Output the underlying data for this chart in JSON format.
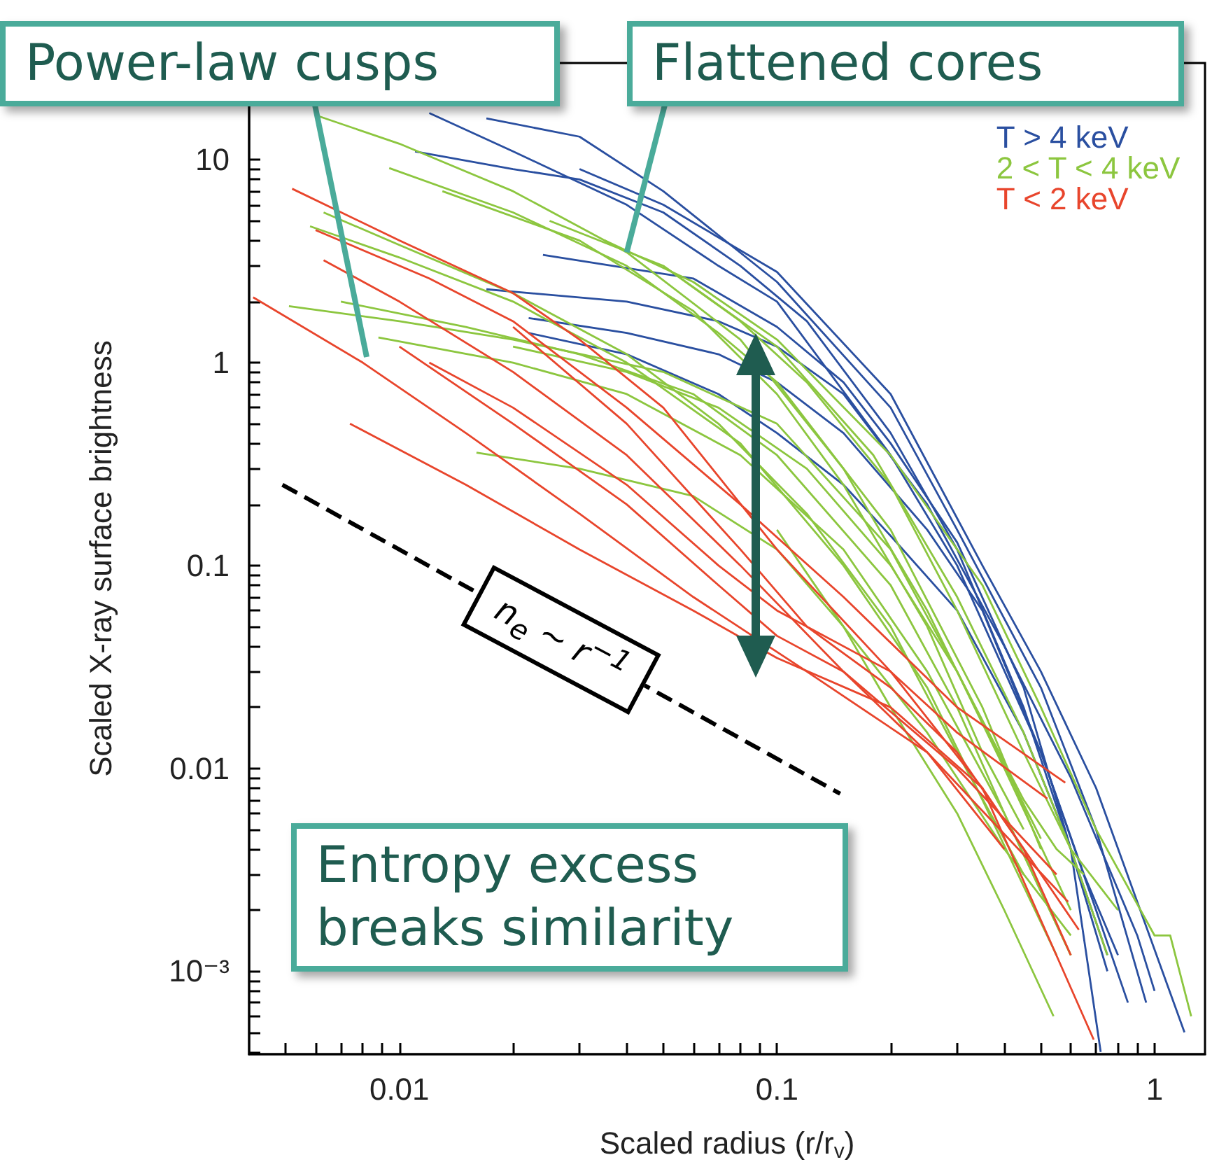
{
  "chart_data": {
    "type": "line",
    "xlabel": "Scaled radius (r/r$_{v}$)",
    "ylabel": "Scaled X-ray surface brightness",
    "log": "xy",
    "grid": false,
    "marker": "none",
    "line_style": "solid",
    "legend": "top right",
    "xlim": [
      0.004,
      1.36
    ],
    "ylim": [
      0.00039,
      30
    ],
    "xticks": [
      {
        "value": 0.005,
        "label": null
      },
      {
        "value": 0.006,
        "label": null
      },
      {
        "value": 0.007,
        "label": null
      },
      {
        "value": 0.008,
        "label": null
      },
      {
        "value": 0.009,
        "label": null
      },
      0.01,
      {
        "value": 0.02,
        "label": null
      },
      {
        "value": 0.03,
        "label": null
      },
      {
        "value": 0.04,
        "label": null
      },
      {
        "value": 0.05,
        "label": null
      },
      {
        "value": 0.06,
        "label": null
      },
      {
        "value": 0.07,
        "label": null
      },
      {
        "value": 0.08,
        "label": null
      },
      {
        "value": 0.09,
        "label": null
      },
      0.1,
      {
        "value": 0.2,
        "label": null
      },
      {
        "value": 0.3,
        "label": null
      },
      {
        "value": 0.4,
        "label": null
      },
      {
        "value": 0.5,
        "label": null
      },
      {
        "value": 0.6,
        "label": null
      },
      {
        "value": 0.7,
        "label": null
      },
      {
        "value": 0.8,
        "label": null
      },
      {
        "value": 0.9,
        "label": null
      },
      1
    ],
    "yticks": [
      {
        "value": 0.0004,
        "label": null
      },
      {
        "value": 0.0005,
        "label": null
      },
      {
        "value": 0.0006,
        "label": null
      },
      {
        "value": 0.0007,
        "label": null
      },
      {
        "value": 0.0008,
        "label": null
      },
      {
        "value": 0.0009,
        "label": null
      },
      {
        "value": 0.001,
        "label": "10⁻³"
      },
      {
        "value": 0.002,
        "label": null
      },
      {
        "value": 0.003,
        "label": null
      },
      {
        "value": 0.004,
        "label": null
      },
      {
        "value": 0.005,
        "label": null
      },
      {
        "value": 0.006,
        "label": null
      },
      {
        "value": 0.007,
        "label": null
      },
      {
        "value": 0.008,
        "label": null
      },
      {
        "value": 0.009,
        "label": null
      },
      0.01,
      {
        "value": 0.02,
        "label": null
      },
      {
        "value": 0.03,
        "label": null
      },
      {
        "value": 0.04,
        "label": null
      },
      {
        "value": 0.05,
        "label": null
      },
      {
        "value": 0.06,
        "label": null
      },
      {
        "value": 0.07,
        "label": null
      },
      {
        "value": 0.08,
        "label": null
      },
      {
        "value": 0.09,
        "label": null
      },
      0.1,
      {
        "value": 0.2,
        "label": null
      },
      {
        "value": 0.3,
        "label": null
      },
      {
        "value": 0.4,
        "label": null
      },
      {
        "value": 0.5,
        "label": null
      },
      {
        "value": 0.6,
        "label": null
      },
      {
        "value": 0.7,
        "label": null
      },
      {
        "value": 0.8,
        "label": null
      },
      {
        "value": 0.9,
        "label": null
      },
      1,
      {
        "value": 2,
        "label": null
      },
      {
        "value": 3,
        "label": null
      },
      {
        "value": 4,
        "label": null
      },
      {
        "value": 5,
        "label": null
      },
      {
        "value": 6,
        "label": null
      },
      {
        "value": 7,
        "label": null
      },
      {
        "value": 8,
        "label": null
      },
      {
        "value": 9,
        "label": null
      },
      10,
      {
        "value": 20,
        "label": null
      }
    ],
    "series": [
      {
        "name": "T > 4 keV",
        "color": "#2a4fa0",
        "x": [
          0.012,
          0.02,
          0.04,
          0.07,
          0.1,
          0.2,
          0.3,
          0.5,
          0.7,
          0.85
        ],
        "values": [
          17,
          11,
          6,
          3,
          2,
          0.35,
          0.1,
          0.012,
          0.002,
          0.0007
        ]
      },
      {
        "color": "#2a4fa0",
        "x": [
          0.011,
          0.02,
          0.03,
          0.05,
          0.08,
          0.12,
          0.2,
          0.3,
          0.45,
          0.6,
          0.75
        ],
        "values": [
          11,
          9,
          8,
          5.5,
          3,
          1.6,
          0.45,
          0.12,
          0.02,
          0.004,
          0.001
        ]
      },
      {
        "color": "#2a4fa0",
        "x": [
          0.017,
          0.04,
          0.07,
          0.1,
          0.15,
          0.25,
          0.4,
          0.6,
          0.9,
          1.0
        ],
        "values": [
          2.3,
          2.0,
          1.6,
          1.2,
          0.7,
          0.2,
          0.04,
          0.009,
          0.0015,
          0.0008
        ]
      },
      {
        "color": "#2a4fa0",
        "x": [
          0.024,
          0.06,
          0.1,
          0.15,
          0.2,
          0.3,
          0.45,
          0.6,
          0.72
        ],
        "values": [
          3.4,
          2.6,
          1.5,
          0.8,
          0.4,
          0.13,
          0.025,
          0.004,
          0.0004
        ]
      },
      {
        "color": "#2a4fa0",
        "x": [
          0.022,
          0.04,
          0.07,
          0.1,
          0.15,
          0.25,
          0.35,
          0.5,
          0.65,
          0.8
        ],
        "values": [
          1.66,
          1.4,
          1.1,
          0.8,
          0.45,
          0.15,
          0.06,
          0.012,
          0.003,
          0.0012
        ]
      },
      {
        "color": "#2a4fa0",
        "x": [
          0.022,
          0.04,
          0.07,
          0.1,
          0.15,
          0.2,
          0.3,
          0.45,
          0.6,
          0.75
        ],
        "values": [
          1.4,
          1.1,
          0.7,
          0.45,
          0.25,
          0.14,
          0.06,
          0.015,
          0.004,
          0.0012
        ]
      },
      {
        "color": "#2a4fa0",
        "x": [
          0.017,
          0.03,
          0.05,
          0.1,
          0.2,
          0.3,
          0.5,
          0.7,
          0.95
        ],
        "values": [
          16,
          13,
          7,
          2.5,
          0.6,
          0.15,
          0.025,
          0.005,
          0.0007
        ]
      },
      {
        "color": "#2a4fa0",
        "x": [
          0.03,
          0.05,
          0.1,
          0.2,
          0.35,
          0.5,
          0.7,
          1.2
        ],
        "values": [
          9,
          6,
          2.8,
          0.7,
          0.1,
          0.03,
          0.008,
          0.0005
        ]
      },
      {
        "name": "2 < T < 4 keV",
        "color": "#8cc63f",
        "x": [
          0.006,
          0.01,
          0.02,
          0.04,
          0.08,
          0.15,
          0.25,
          0.4,
          0.6
        ],
        "values": [
          16.6,
          12,
          7,
          3.5,
          1.3,
          0.3,
          0.06,
          0.01,
          0.002
        ]
      },
      {
        "color": "#8cc63f",
        "x": [
          0.0094,
          0.02,
          0.04,
          0.07,
          0.1,
          0.2,
          0.35,
          0.5
        ],
        "values": [
          9.1,
          5.5,
          3,
          1.4,
          0.8,
          0.15,
          0.02,
          0.004
        ]
      },
      {
        "color": "#8cc63f",
        "x": [
          0.0063,
          0.01,
          0.02,
          0.04,
          0.07,
          0.12,
          0.2,
          0.3,
          0.45
        ],
        "values": [
          5.5,
          3.8,
          2.2,
          1.1,
          0.5,
          0.18,
          0.05,
          0.012,
          0.003
        ]
      },
      {
        "color": "#8cc63f",
        "x": [
          0.0058,
          0.01,
          0.02,
          0.04,
          0.08,
          0.15,
          0.25,
          0.35,
          0.55
        ],
        "values": [
          4.7,
          3.3,
          2.0,
          1.0,
          0.4,
          0.1,
          0.025,
          0.007,
          0.0012
        ]
      },
      {
        "color": "#8cc63f",
        "x": [
          0.0051,
          0.01,
          0.02,
          0.05,
          0.1,
          0.2,
          0.3,
          0.5
        ],
        "values": [
          1.9,
          1.6,
          1.3,
          0.9,
          0.5,
          0.12,
          0.03,
          0.0045
        ]
      },
      {
        "color": "#8cc63f",
        "x": [
          0.007,
          0.015,
          0.03,
          0.06,
          0.1,
          0.2,
          0.3,
          0.4,
          0.6
        ],
        "values": [
          2.0,
          1.5,
          1.1,
          0.7,
          0.35,
          0.08,
          0.02,
          0.006,
          0.0012
        ]
      },
      {
        "color": "#8cc63f",
        "x": [
          0.0088,
          0.02,
          0.04,
          0.08,
          0.15,
          0.25,
          0.4,
          0.6
        ],
        "values": [
          1.33,
          1.0,
          0.7,
          0.35,
          0.12,
          0.03,
          0.006,
          0.0012
        ]
      },
      {
        "color": "#8cc63f",
        "x": [
          0.016,
          0.03,
          0.06,
          0.1,
          0.15,
          0.25,
          0.4,
          0.6
        ],
        "values": [
          0.36,
          0.3,
          0.22,
          0.12,
          0.05,
          0.015,
          0.004,
          0.0015
        ]
      },
      {
        "color": "#8cc63f",
        "x": [
          0.035,
          0.06,
          0.1,
          0.2,
          0.35,
          0.5,
          0.7,
          1.0,
          1.1,
          1.25
        ],
        "values": [
          4,
          2.5,
          1.3,
          0.35,
          0.08,
          0.02,
          0.005,
          0.0015,
          0.0015,
          0.0006
        ]
      },
      {
        "color": "#8cc63f",
        "x": [
          0.05,
          0.08,
          0.12,
          0.2,
          0.3,
          0.45,
          0.6,
          0.8
        ],
        "values": [
          3,
          1.6,
          0.8,
          0.25,
          0.06,
          0.012,
          0.004,
          0.002
        ]
      },
      {
        "color": "#8cc63f",
        "x": [
          0.02,
          0.04,
          0.07,
          0.12,
          0.2,
          0.3,
          0.45,
          0.55,
          0.65
        ],
        "values": [
          1.2,
          0.9,
          0.6,
          0.3,
          0.1,
          0.03,
          0.007,
          0.004,
          0.003
        ]
      },
      {
        "color": "#8cc63f",
        "x": [
          0.013,
          0.03,
          0.06,
          0.1,
          0.15,
          0.25,
          0.35,
          0.45
        ],
        "values": [
          7,
          4,
          1.8,
          0.7,
          0.25,
          0.05,
          0.012,
          0.005
        ]
      },
      {
        "color": "#8cc63f",
        "x": [
          0.025,
          0.05,
          0.1,
          0.18,
          0.3,
          0.45,
          0.6,
          0.75
        ],
        "values": [
          5,
          3,
          1.2,
          0.35,
          0.07,
          0.015,
          0.004,
          0.0012
        ]
      },
      {
        "color": "#8cc63f",
        "x": [
          0.1,
          0.15,
          0.2,
          0.3,
          0.4,
          0.54
        ],
        "values": [
          0.15,
          0.05,
          0.02,
          0.006,
          0.002,
          0.0006
        ]
      },
      {
        "name": "T < 2 keV",
        "color": "#e8452c",
        "x": [
          0.0052,
          0.01,
          0.02,
          0.03,
          0.05,
          0.1,
          0.2,
          0.35,
          0.69
        ],
        "values": [
          7.2,
          4,
          2.2,
          1.3,
          0.6,
          0.12,
          0.03,
          0.008,
          0.00046
        ]
      },
      {
        "color": "#e8452c",
        "x": [
          0.0063,
          0.01,
          0.02,
          0.04,
          0.08,
          0.15,
          0.3,
          0.55
        ],
        "values": [
          3.2,
          2,
          0.9,
          0.35,
          0.1,
          0.03,
          0.01,
          0.003
        ]
      },
      {
        "color": "#e8452c",
        "x": [
          0.0041,
          0.008,
          0.015,
          0.03,
          0.06,
          0.12,
          0.25,
          0.59
        ],
        "values": [
          2.1,
          1.0,
          0.45,
          0.18,
          0.07,
          0.03,
          0.012,
          0.0022
        ]
      },
      {
        "color": "#e8452c",
        "x": [
          0.0074,
          0.015,
          0.03,
          0.06,
          0.1,
          0.2,
          0.35,
          0.63
        ],
        "values": [
          0.5,
          0.25,
          0.12,
          0.06,
          0.035,
          0.02,
          0.008,
          0.0016
        ]
      },
      {
        "color": "#e8452c",
        "x": [
          0.012,
          0.02,
          0.04,
          0.07,
          0.1,
          0.2,
          0.3,
          0.52
        ],
        "values": [
          1.0,
          0.6,
          0.25,
          0.1,
          0.06,
          0.03,
          0.015,
          0.0071
        ]
      },
      {
        "color": "#e8452c",
        "x": [
          0.006,
          0.012,
          0.02,
          0.04,
          0.08,
          0.15,
          0.3,
          0.58
        ],
        "values": [
          4.5,
          2.6,
          1.6,
          0.6,
          0.2,
          0.07,
          0.02,
          0.0085
        ]
      },
      {
        "color": "#e8452c",
        "x": [
          0.01,
          0.02,
          0.04,
          0.07,
          0.1,
          0.15,
          0.25,
          0.4
        ],
        "values": [
          1.2,
          0.5,
          0.2,
          0.08,
          0.045,
          0.03,
          0.012,
          0.004
        ]
      },
      {
        "color": "#e8452c",
        "x": [
          0.02,
          0.04,
          0.08,
          0.12,
          0.2,
          0.3,
          0.45,
          0.6
        ],
        "values": [
          1.5,
          0.5,
          0.12,
          0.05,
          0.025,
          0.012,
          0.004,
          0.0012
        ]
      },
      {
        "color": "#000000",
        "line_style": "dashed",
        "x": [
          0.0049,
          0.147
        ],
        "values": [
          0.25,
          0.0075
        ]
      }
    ],
    "annotations": [
      "Power-law cusps",
      {
        "text": "Flattened cores",
        "x": 0.04,
        "y": 3.5
      },
      {
        "text": "n$_{e}$ ~ r$^{−1}$",
        "x": 0.0268,
        "y": 0.0433
      },
      "Entropy excess breaks similarity"
    ]
  }
}
